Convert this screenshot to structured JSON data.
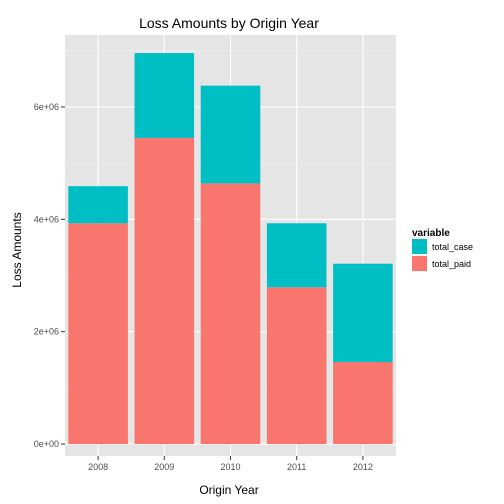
{
  "chart_data": {
    "type": "bar",
    "stacked": true,
    "title": "Loss Amounts by Origin Year",
    "xlabel": "Origin Year",
    "ylabel": "Loss Amounts",
    "categories": [
      "2008",
      "2009",
      "2010",
      "2011",
      "2012"
    ],
    "series": [
      {
        "name": "total_paid",
        "color": "#F8766D",
        "values": [
          3930000,
          5450000,
          4640000,
          2790000,
          1460000
        ]
      },
      {
        "name": "total_case",
        "color": "#00BFC4",
        "values": [
          660000,
          1510000,
          1740000,
          1140000,
          1750000
        ]
      }
    ],
    "ylim": [
      0,
      7000000
    ],
    "yticks": [
      0,
      2000000,
      4000000,
      6000000
    ],
    "ytick_labels": [
      "0e+00",
      "2e+06",
      "4e+06",
      "6e+06"
    ],
    "grid": true,
    "legend": {
      "title": "variable",
      "position": "right",
      "entries": [
        {
          "label": "total_case",
          "color": "#00BFC4"
        },
        {
          "label": "total_paid",
          "color": "#F8766D"
        }
      ]
    },
    "panel_background": "#E5E5E5",
    "grid_color": "#FFFFFF"
  }
}
